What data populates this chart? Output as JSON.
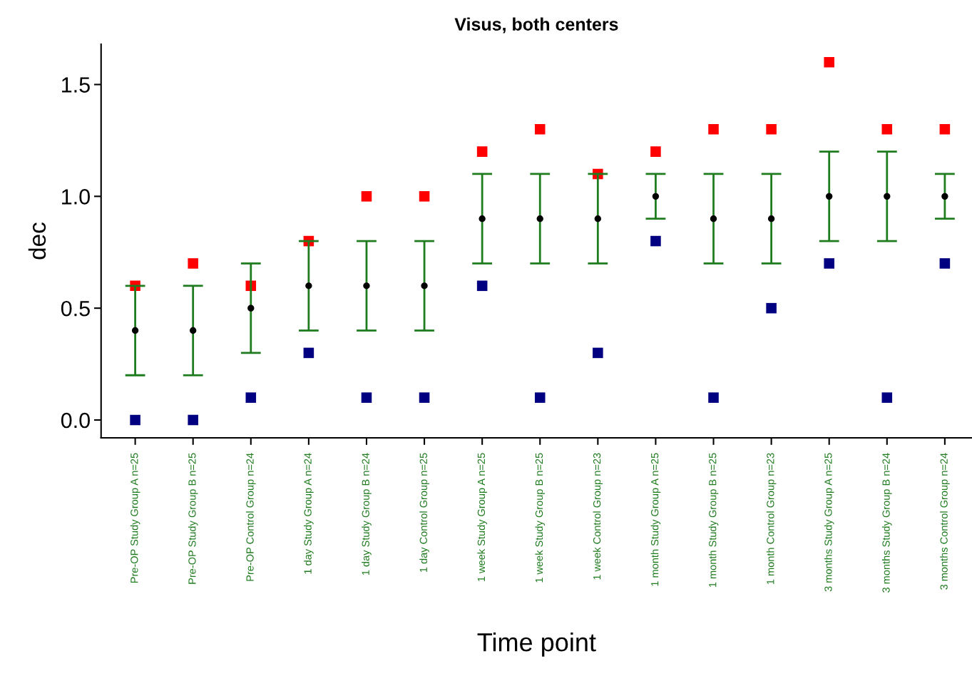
{
  "chart_data": {
    "type": "scatter",
    "title": "Visus, both centers",
    "xlabel": "Time point",
    "ylabel": "dec",
    "categories": [
      "Pre-OP Study Group A n=25",
      "Pre-OP Study Group B n=25",
      "Pre-OP Control Group n=24",
      "1 day Study Group A n=24",
      "1 day Study Group B n=24",
      "1 day Control Group n=25",
      "1 week Study Group A n=25",
      "1 week Study Group B n=25",
      "1 week Control Group n=23",
      "1 month Study Group A n=25",
      "1 month Study Group B n=25",
      "1 month Control Group n=23",
      "3 months Study Group A n=25",
      "3 months Study Group B n=24",
      "3 months Control Group n=24"
    ],
    "series": [
      {
        "color": "#ff0000",
        "marker": "square",
        "values": [
          0.6,
          0.7,
          0.6,
          0.8,
          1.0,
          1.0,
          1.2,
          1.3,
          1.1,
          1.2,
          1.3,
          1.3,
          1.6,
          1.3,
          1.3
        ]
      },
      {
        "color": "#000080",
        "marker": "square",
        "values": [
          0.0,
          0.0,
          0.1,
          0.3,
          0.1,
          0.1,
          0.6,
          0.1,
          0.3,
          0.8,
          0.1,
          0.5,
          0.7,
          0.1,
          0.7
        ]
      },
      {
        "color": "#000000",
        "marker": "circle",
        "values": [
          0.4,
          0.4,
          0.5,
          0.6,
          0.6,
          0.6,
          0.9,
          0.9,
          0.9,
          1.0,
          0.9,
          0.9,
          1.0,
          1.0,
          1.0
        ],
        "errors": [
          [
            0.2,
            0.6
          ],
          [
            0.2,
            0.6
          ],
          [
            0.3,
            0.7
          ],
          [
            0.4,
            0.8
          ],
          [
            0.4,
            0.8
          ],
          [
            0.4,
            0.8
          ],
          [
            0.7,
            1.1
          ],
          [
            0.7,
            1.1
          ],
          [
            0.7,
            1.1
          ],
          [
            0.9,
            1.1
          ],
          [
            0.7,
            1.1
          ],
          [
            0.7,
            1.1
          ],
          [
            0.8,
            1.2
          ],
          [
            0.8,
            1.2
          ],
          [
            0.9,
            1.1
          ]
        ]
      }
    ],
    "ylim": [
      -0.08,
      1.68
    ],
    "yticks": [
      {
        "value": 0,
        "label": "0.0"
      },
      {
        "value": 0.5,
        "label": "0.5"
      },
      {
        "value": 1,
        "label": "1.0"
      },
      {
        "value": 1.5,
        "label": "1.5"
      }
    ],
    "grid": false
  }
}
